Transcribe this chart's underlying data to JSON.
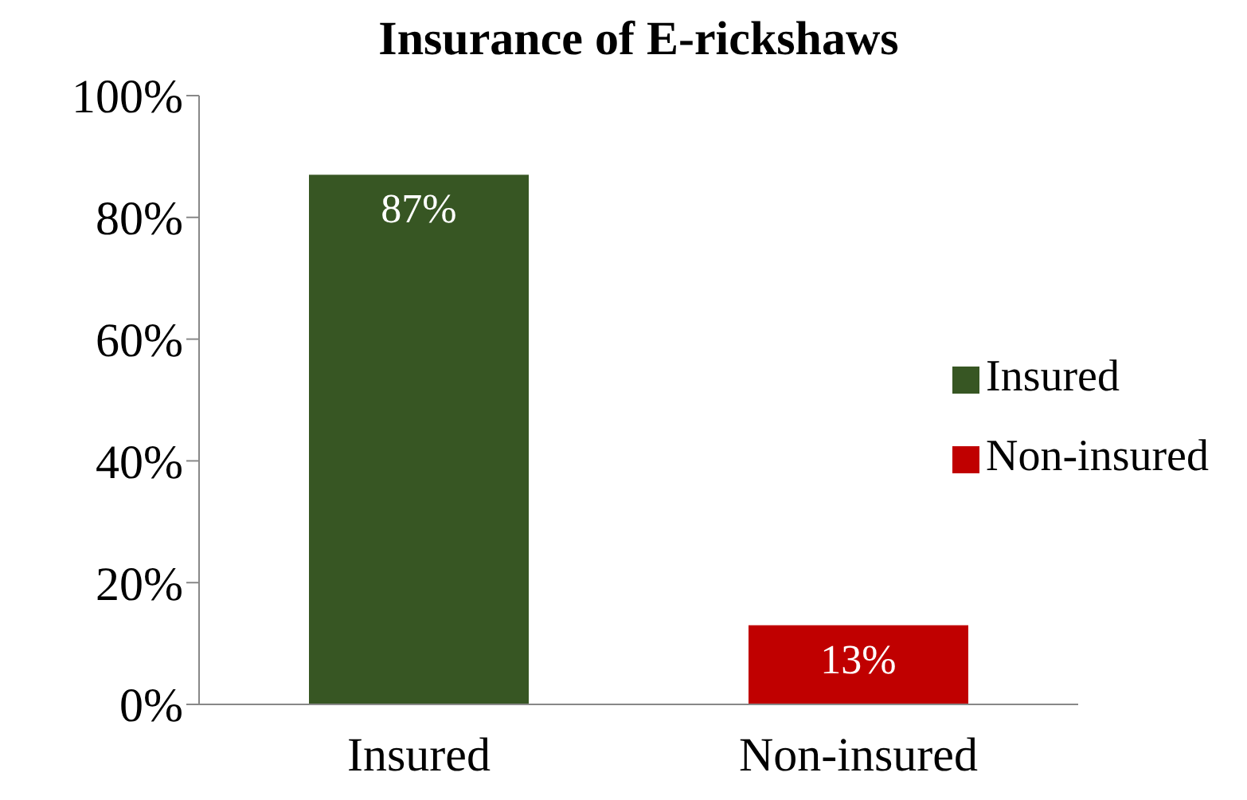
{
  "chart_data": {
    "type": "bar",
    "title": "Insurance of E-rickshaws",
    "categories": [
      "Insured",
      "Non-insured"
    ],
    "series": [
      {
        "name": "Insured",
        "color": "#375623",
        "values": [
          87,
          null
        ],
        "value_labels": [
          "87%",
          null
        ]
      },
      {
        "name": "Non-insured",
        "color": "#c00000",
        "values": [
          null,
          13
        ],
        "value_labels": [
          null,
          "13%"
        ]
      }
    ],
    "stacked": true,
    "ylim": [
      0,
      100
    ],
    "yticks": [
      {
        "value": 0,
        "label": "0%"
      },
      {
        "value": 20,
        "label": "20%"
      },
      {
        "value": 40,
        "label": "40%"
      },
      {
        "value": 60,
        "label": "60%"
      },
      {
        "value": 80,
        "label": "80%"
      },
      {
        "value": 100,
        "label": "100%"
      }
    ],
    "grid": false,
    "legend": "right"
  }
}
